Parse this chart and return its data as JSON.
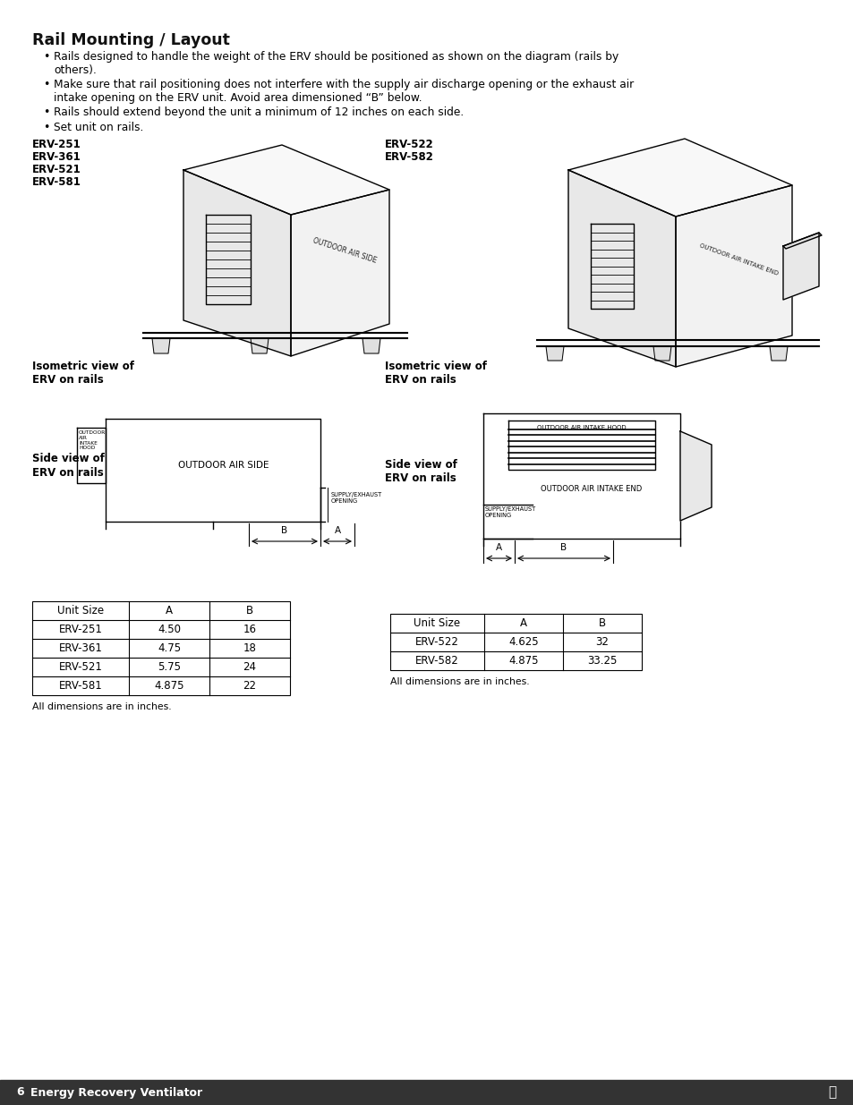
{
  "title": "Rail Mounting / Layout",
  "bullets": [
    "Rails designed to handle the weight of the ERV should be positioned as shown on the diagram (rails by\nothers).",
    "Make sure that rail positioning does not interfere with the supply air discharge opening or the exhaust air\nintake opening on the ERV unit. Avoid area dimensioned “B” below.",
    "Rails should extend beyond the unit a minimum of 12 inches on each side.",
    "Set unit on rails."
  ],
  "left_model_labels": [
    "ERV-251",
    "ERV-361",
    "ERV-521",
    "ERV-581"
  ],
  "right_model_labels": [
    "ERV-522",
    "ERV-582"
  ],
  "iso_label": "Isometric view of\nERV on rails",
  "side_label": "Side view of\nERV on rails",
  "table1_headers": [
    "Unit Size",
    "A",
    "B"
  ],
  "table1_rows": [
    [
      "ERV-251",
      "4.50",
      "16"
    ],
    [
      "ERV-361",
      "4.75",
      "18"
    ],
    [
      "ERV-521",
      "5.75",
      "24"
    ],
    [
      "ERV-581",
      "4.875",
      "22"
    ]
  ],
  "table2_headers": [
    "Unit Size",
    "A",
    "B"
  ],
  "table2_rows": [
    [
      "ERV-522",
      "4.625",
      "32"
    ],
    [
      "ERV-582",
      "4.875",
      "33.25"
    ]
  ],
  "table_note": "All dimensions are in inches.",
  "footer_page": "6",
  "footer_text": "Energy Recovery Ventilator",
  "bg_color": "#ffffff",
  "lc": "#000000"
}
